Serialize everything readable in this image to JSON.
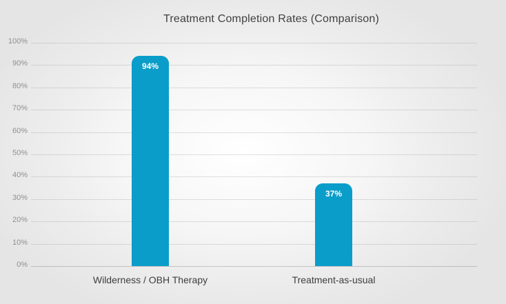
{
  "chart_data": {
    "type": "bar",
    "title": "Treatment Completion Rates (Comparison)",
    "categories": [
      "Wilderness / OBH Therapy",
      "Treatment-as-usual"
    ],
    "values": [
      94,
      37
    ],
    "value_labels": [
      "94%",
      "37%"
    ],
    "ylim": [
      0,
      100
    ],
    "yticks": [
      0,
      10,
      20,
      30,
      40,
      50,
      60,
      70,
      80,
      90,
      100
    ],
    "ytick_labels": [
      "0%",
      "10%",
      "20%",
      "30%",
      "40%",
      "50%",
      "60%",
      "70%",
      "80%",
      "90%",
      "100%"
    ],
    "xlabel": "",
    "ylabel": "",
    "grid": "horizontal",
    "legend_position": "none",
    "bar_color": "#0b9dc9",
    "value_label_color": "#ffffff"
  },
  "colors": {
    "background_outer": "#e6e5e5",
    "background_center": "#ffffff",
    "gridline": "#d9d9d9",
    "title_text": "#3f3f3f",
    "axis_tick_text": "#8f8f8f",
    "category_text": "#3d3d3d"
  }
}
